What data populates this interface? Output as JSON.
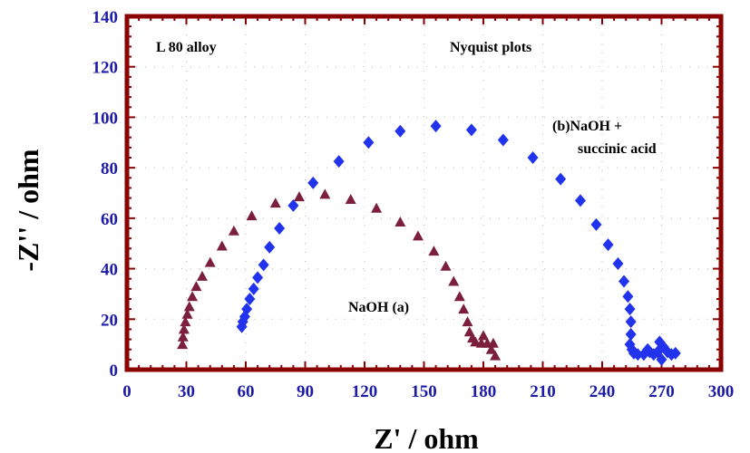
{
  "chart_data": {
    "type": "scatter",
    "title": "",
    "xlabel": "Z' / ohm",
    "ylabel": "-Z'' / ohm",
    "xlim": [
      0,
      300
    ],
    "ylim": [
      0,
      140
    ],
    "x_ticks": [
      "0",
      "30",
      "60",
      "90",
      "120",
      "150",
      "180",
      "210",
      "240",
      "270",
      "300"
    ],
    "y_ticks": [
      "0",
      "20",
      "40",
      "60",
      "80",
      "100",
      "120",
      "140"
    ],
    "grid": "dotted",
    "frame_color": "#8b0000",
    "annotations": {
      "alloy": "L 80 alloy",
      "plot_type": "Nyquist plots",
      "series_a_label": "NaOH (a)",
      "series_b_label_line1": "(b)NaOH +",
      "series_b_label_line2": "succinic acid"
    },
    "series": [
      {
        "name": "NaOH (a)",
        "marker": "triangle",
        "color": "#7b1f3d",
        "points": [
          [
            28,
            10
          ],
          [
            28.3,
            13
          ],
          [
            28.8,
            16
          ],
          [
            29.5,
            19
          ],
          [
            30.5,
            22
          ],
          [
            31.5,
            25
          ],
          [
            33,
            29
          ],
          [
            35,
            33
          ],
          [
            38,
            37
          ],
          [
            42,
            42.5
          ],
          [
            48,
            49
          ],
          [
            54,
            55
          ],
          [
            63,
            61
          ],
          [
            75,
            66
          ],
          [
            87,
            68.5
          ],
          [
            100,
            69.5
          ],
          [
            113,
            67.5
          ],
          [
            126,
            64
          ],
          [
            138,
            58.5
          ],
          [
            147,
            53
          ],
          [
            155,
            47
          ],
          [
            161,
            41
          ],
          [
            165,
            35
          ],
          [
            168,
            29
          ],
          [
            170,
            24
          ],
          [
            172,
            19
          ],
          [
            173,
            15
          ],
          [
            174.5,
            12.5
          ],
          [
            176,
            11
          ],
          [
            179,
            10.5
          ],
          [
            182,
            10.5
          ],
          [
            185,
            10.5
          ],
          [
            180,
            13.5
          ],
          [
            184,
            8
          ],
          [
            186,
            5.5
          ]
        ]
      },
      {
        "name": "(b)NaOH + succinic acid",
        "marker": "diamond",
        "color": "#2233ee",
        "points": [
          [
            58,
            17
          ],
          [
            58.5,
            19
          ],
          [
            59.5,
            21
          ],
          [
            60.5,
            24
          ],
          [
            62,
            28
          ],
          [
            64,
            32
          ],
          [
            66,
            36.5
          ],
          [
            69,
            41.5
          ],
          [
            72,
            48.5
          ],
          [
            77,
            56
          ],
          [
            84,
            65
          ],
          [
            94,
            74
          ],
          [
            107,
            82.5
          ],
          [
            122,
            90
          ],
          [
            138,
            94.5
          ],
          [
            156,
            96.5
          ],
          [
            174,
            95
          ],
          [
            190,
            91
          ],
          [
            205,
            84
          ],
          [
            219,
            75.5
          ],
          [
            229,
            67
          ],
          [
            237,
            57.5
          ],
          [
            243,
            49.5
          ],
          [
            248,
            42
          ],
          [
            251,
            35
          ],
          [
            253,
            29
          ],
          [
            254,
            24
          ],
          [
            254.5,
            19
          ],
          [
            254.5,
            14
          ],
          [
            254,
            10
          ],
          [
            255,
            8
          ],
          [
            256,
            6.5
          ],
          [
            258,
            6
          ],
          [
            261,
            6
          ],
          [
            263,
            8
          ],
          [
            264,
            7
          ],
          [
            266,
            6
          ],
          [
            268,
            7
          ],
          [
            269,
            11
          ],
          [
            270,
            4
          ],
          [
            271,
            9
          ],
          [
            273,
            7
          ],
          [
            275,
            6
          ],
          [
            277,
            6.5
          ]
        ]
      }
    ]
  }
}
